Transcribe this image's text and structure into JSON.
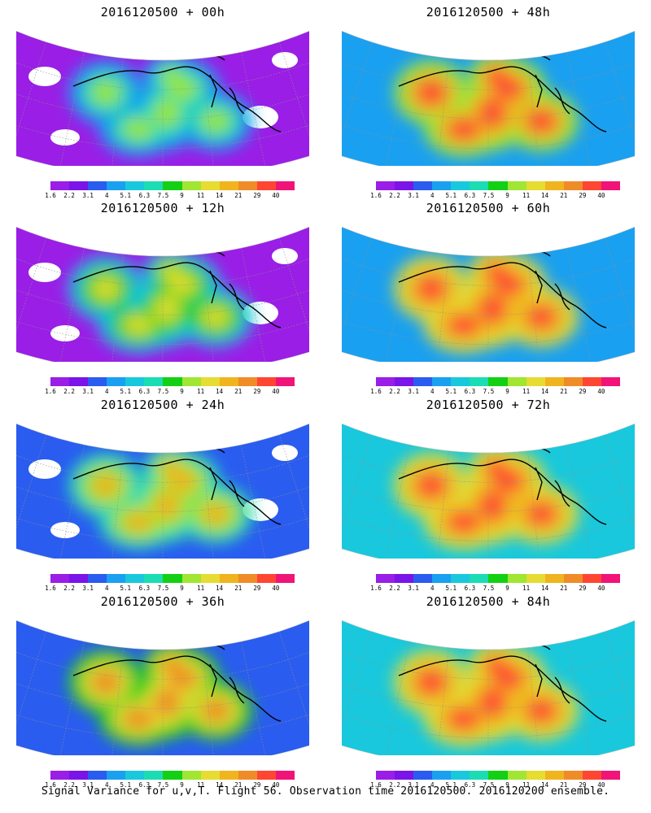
{
  "panels": [
    {
      "title": "2016120500 + 00h",
      "level": 0
    },
    {
      "title": "2016120500 + 12h",
      "level": 1
    },
    {
      "title": "2016120500 + 24h",
      "level": 2
    },
    {
      "title": "2016120500 + 36h",
      "level": 3
    },
    {
      "title": "2016120500 + 48h",
      "level": 4
    },
    {
      "title": "2016120500 + 60h",
      "level": 5
    },
    {
      "title": "2016120500 + 72h",
      "level": 6
    },
    {
      "title": "2016120500 + 84h",
      "level": 7
    }
  ],
  "colorbar": {
    "colors": [
      "#9a1ee6",
      "#7a14e8",
      "#2a5cf0",
      "#1aa0f0",
      "#19c8dc",
      "#1cdcb4",
      "#14d014",
      "#a0e632",
      "#e6dc32",
      "#f0b41e",
      "#f08c28",
      "#ff4632",
      "#f01478"
    ],
    "ticks": [
      "1.6",
      "2.2",
      "3.1",
      "4",
      "5.1",
      "6.3",
      "7.5",
      "9",
      "11",
      "14",
      "21",
      "29",
      "40"
    ]
  },
  "map_colors": {
    "coast": "#000000",
    "grid": "#909090",
    "missing": "#ffffff"
  },
  "footer": "Signal Variance for u,v,T. Flight 56. Observation time 2016120500. 2016120200 ensemble."
}
